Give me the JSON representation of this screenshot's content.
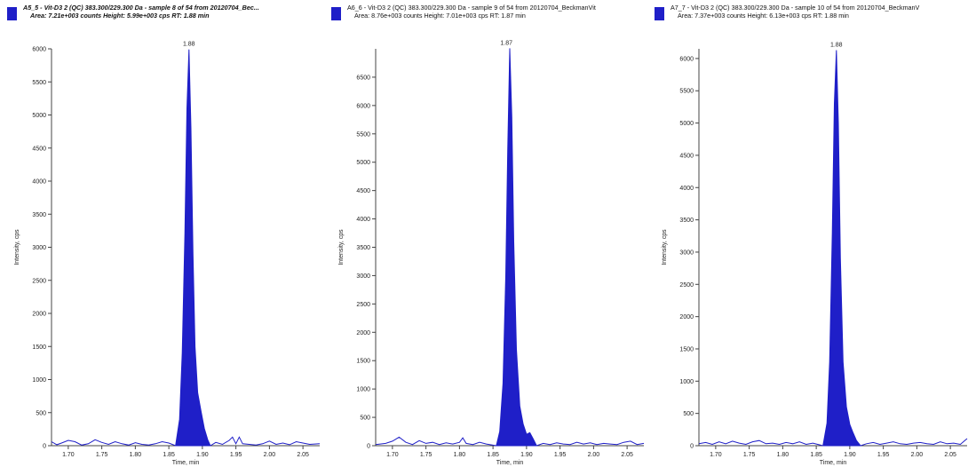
{
  "colors": {
    "accent": "#1f1fc8",
    "axis": "#444444"
  },
  "chart_data": [
    {
      "type": "area",
      "legend_title_line1": "A5_5 - Vit-D3 2 (QC) 383.300/229.300 Da - sample 8 of 54 from 20120704_Bec...",
      "legend_title_line2": "Area: 7.21e+003 counts  Height: 5.99e+003 cps  RT: 1.88 min",
      "xlabel": "Time, min",
      "ylabel": "Intensity, cps",
      "xlim": [
        1.675,
        2.075
      ],
      "ylim": [
        0,
        6000
      ],
      "yticks": [
        0,
        500,
        1000,
        1500,
        2000,
        2500,
        3000,
        3500,
        4000,
        4500,
        5000,
        5500,
        6000
      ],
      "ytick_labels": [
        "0",
        "500",
        "1000",
        "1500",
        "2000",
        "2500",
        "3000",
        "3500",
        "4000",
        "4500",
        "5000",
        "5500",
        "6000"
      ],
      "xticks": [
        1.7,
        1.75,
        1.8,
        1.85,
        1.9,
        1.95,
        2.0,
        2.05
      ],
      "xtick_labels": [
        "1.70",
        "1.75",
        "1.80",
        "1.85",
        "1.90",
        "1.95",
        "2.00",
        "2.05"
      ],
      "peak_rt": 1.88,
      "peak_label": "1.88",
      "peak_x": [
        1.86,
        1.866,
        1.87,
        1.874,
        1.877,
        1.88,
        1.883,
        1.886,
        1.889,
        1.893,
        1.898,
        1.903,
        1.908,
        1.912
      ],
      "peak_y": [
        0,
        400,
        1400,
        3200,
        5100,
        5990,
        4800,
        2900,
        1500,
        800,
        520,
        260,
        90,
        0
      ],
      "baseline_x": [
        1.675,
        1.683,
        1.69,
        1.7,
        1.71,
        1.72,
        1.73,
        1.74,
        1.75,
        1.76,
        1.77,
        1.78,
        1.79,
        1.8,
        1.81,
        1.82,
        1.83,
        1.84,
        1.85,
        1.86,
        1.912,
        1.92,
        1.93,
        1.94,
        1.945,
        1.95,
        1.955,
        1.96,
        1.97,
        1.98,
        1.99,
        2.0,
        2.01,
        2.02,
        2.03,
        2.04,
        2.05,
        2.06,
        2.075
      ],
      "baseline_y": [
        60,
        15,
        40,
        80,
        60,
        10,
        30,
        90,
        50,
        20,
        60,
        30,
        10,
        45,
        20,
        10,
        30,
        60,
        40,
        0,
        0,
        50,
        20,
        80,
        130,
        30,
        130,
        30,
        20,
        10,
        30,
        70,
        20,
        40,
        15,
        60,
        40,
        20,
        30
      ]
    },
    {
      "type": "area",
      "legend_title_line1": "A6_6 - Vit-D3 2 (QC) 383.300/229.300 Da - sample 9 of 54 from 20120704_BeckmanVit",
      "legend_title_line2": "Area: 8.76e+003 counts  Height: 7.01e+003 cps  RT: 1.87 min",
      "xlabel": "Time, min",
      "ylabel": "Intensity, cps",
      "xlim": [
        1.675,
        2.075
      ],
      "ylim": [
        0,
        7000
      ],
      "yticks": [
        0,
        500,
        1000,
        1500,
        2000,
        2500,
        3000,
        3500,
        4000,
        4500,
        5000,
        5500,
        6000,
        6500
      ],
      "ytick_labels": [
        "0",
        "500",
        "1000",
        "1500",
        "2000",
        "2500",
        "3000",
        "3500",
        "4000",
        "4500",
        "5000",
        "5500",
        "6000",
        "6500"
      ],
      "xticks": [
        1.7,
        1.75,
        1.8,
        1.85,
        1.9,
        1.95,
        2.0,
        2.05
      ],
      "xtick_labels": [
        "1.70",
        "1.75",
        "1.80",
        "1.85",
        "1.90",
        "1.95",
        "2.00",
        "2.05"
      ],
      "peak_rt": 1.87,
      "peak_label": "1.87",
      "peak_x": [
        1.855,
        1.86,
        1.865,
        1.869,
        1.872,
        1.875,
        1.878,
        1.881,
        1.885,
        1.89,
        1.895,
        1.9,
        1.905,
        1.91,
        1.915
      ],
      "peak_y": [
        0,
        250,
        1100,
        3000,
        5200,
        7010,
        5800,
        3600,
        1700,
        700,
        380,
        200,
        230,
        120,
        0
      ],
      "baseline_x": [
        1.675,
        1.69,
        1.7,
        1.71,
        1.72,
        1.73,
        1.74,
        1.75,
        1.76,
        1.77,
        1.78,
        1.79,
        1.8,
        1.805,
        1.81,
        1.82,
        1.83,
        1.84,
        1.855,
        1.915,
        1.925,
        1.935,
        1.945,
        1.955,
        1.965,
        1.975,
        1.985,
        1.995,
        2.005,
        2.015,
        2.025,
        2.035,
        2.045,
        2.055,
        2.065,
        2.075
      ],
      "baseline_y": [
        20,
        40,
        80,
        150,
        60,
        20,
        90,
        40,
        60,
        20,
        50,
        30,
        60,
        140,
        40,
        20,
        60,
        30,
        0,
        0,
        40,
        20,
        50,
        30,
        20,
        60,
        30,
        50,
        20,
        40,
        30,
        20,
        60,
        80,
        20,
        40
      ]
    },
    {
      "type": "area",
      "legend_title_line1": "A7_7 - Vit-D3 2 (QC) 383.300/229.300 Da - sample 10 of 54 from 20120704_BeckmanV",
      "legend_title_line2": "Area: 7.37e+003 counts  Height: 6.13e+003 cps  RT: 1.88 min",
      "xlabel": "Time, min",
      "ylabel": "Intensity, cps",
      "xlim": [
        1.675,
        2.075
      ],
      "ylim": [
        0,
        6150
      ],
      "yticks": [
        0,
        500,
        1000,
        1500,
        2000,
        2500,
        3000,
        3500,
        4000,
        4500,
        5000,
        5500,
        6000
      ],
      "ytick_labels": [
        "0",
        "500",
        "1000",
        "1500",
        "2000",
        "2500",
        "3000",
        "3500",
        "4000",
        "4500",
        "5000",
        "5500",
        "6000"
      ],
      "xticks": [
        1.7,
        1.75,
        1.8,
        1.85,
        1.9,
        1.95,
        2.0,
        2.05
      ],
      "xtick_labels": [
        "1.70",
        "1.75",
        "1.80",
        "1.85",
        "1.90",
        "1.95",
        "2.00",
        "2.05"
      ],
      "peak_rt": 1.88,
      "peak_label": "1.88",
      "peak_x": [
        1.86,
        1.866,
        1.87,
        1.874,
        1.877,
        1.88,
        1.883,
        1.886,
        1.89,
        1.895,
        1.9,
        1.905,
        1.91,
        1.916
      ],
      "peak_y": [
        0,
        350,
        1300,
        3300,
        5300,
        6130,
        5000,
        2900,
        1300,
        600,
        330,
        200,
        80,
        0
      ],
      "baseline_x": [
        1.675,
        1.685,
        1.695,
        1.705,
        1.715,
        1.725,
        1.735,
        1.745,
        1.755,
        1.765,
        1.775,
        1.785,
        1.795,
        1.805,
        1.815,
        1.825,
        1.835,
        1.845,
        1.86,
        1.916,
        1.925,
        1.935,
        1.945,
        1.955,
        1.965,
        1.975,
        1.985,
        1.995,
        2.005,
        2.015,
        2.025,
        2.035,
        2.045,
        2.055,
        2.065,
        2.075
      ],
      "baseline_y": [
        30,
        50,
        20,
        60,
        30,
        70,
        40,
        20,
        60,
        80,
        30,
        40,
        20,
        50,
        30,
        60,
        20,
        40,
        0,
        0,
        30,
        50,
        20,
        40,
        60,
        30,
        20,
        40,
        50,
        30,
        20,
        60,
        30,
        40,
        20,
        110
      ]
    }
  ]
}
